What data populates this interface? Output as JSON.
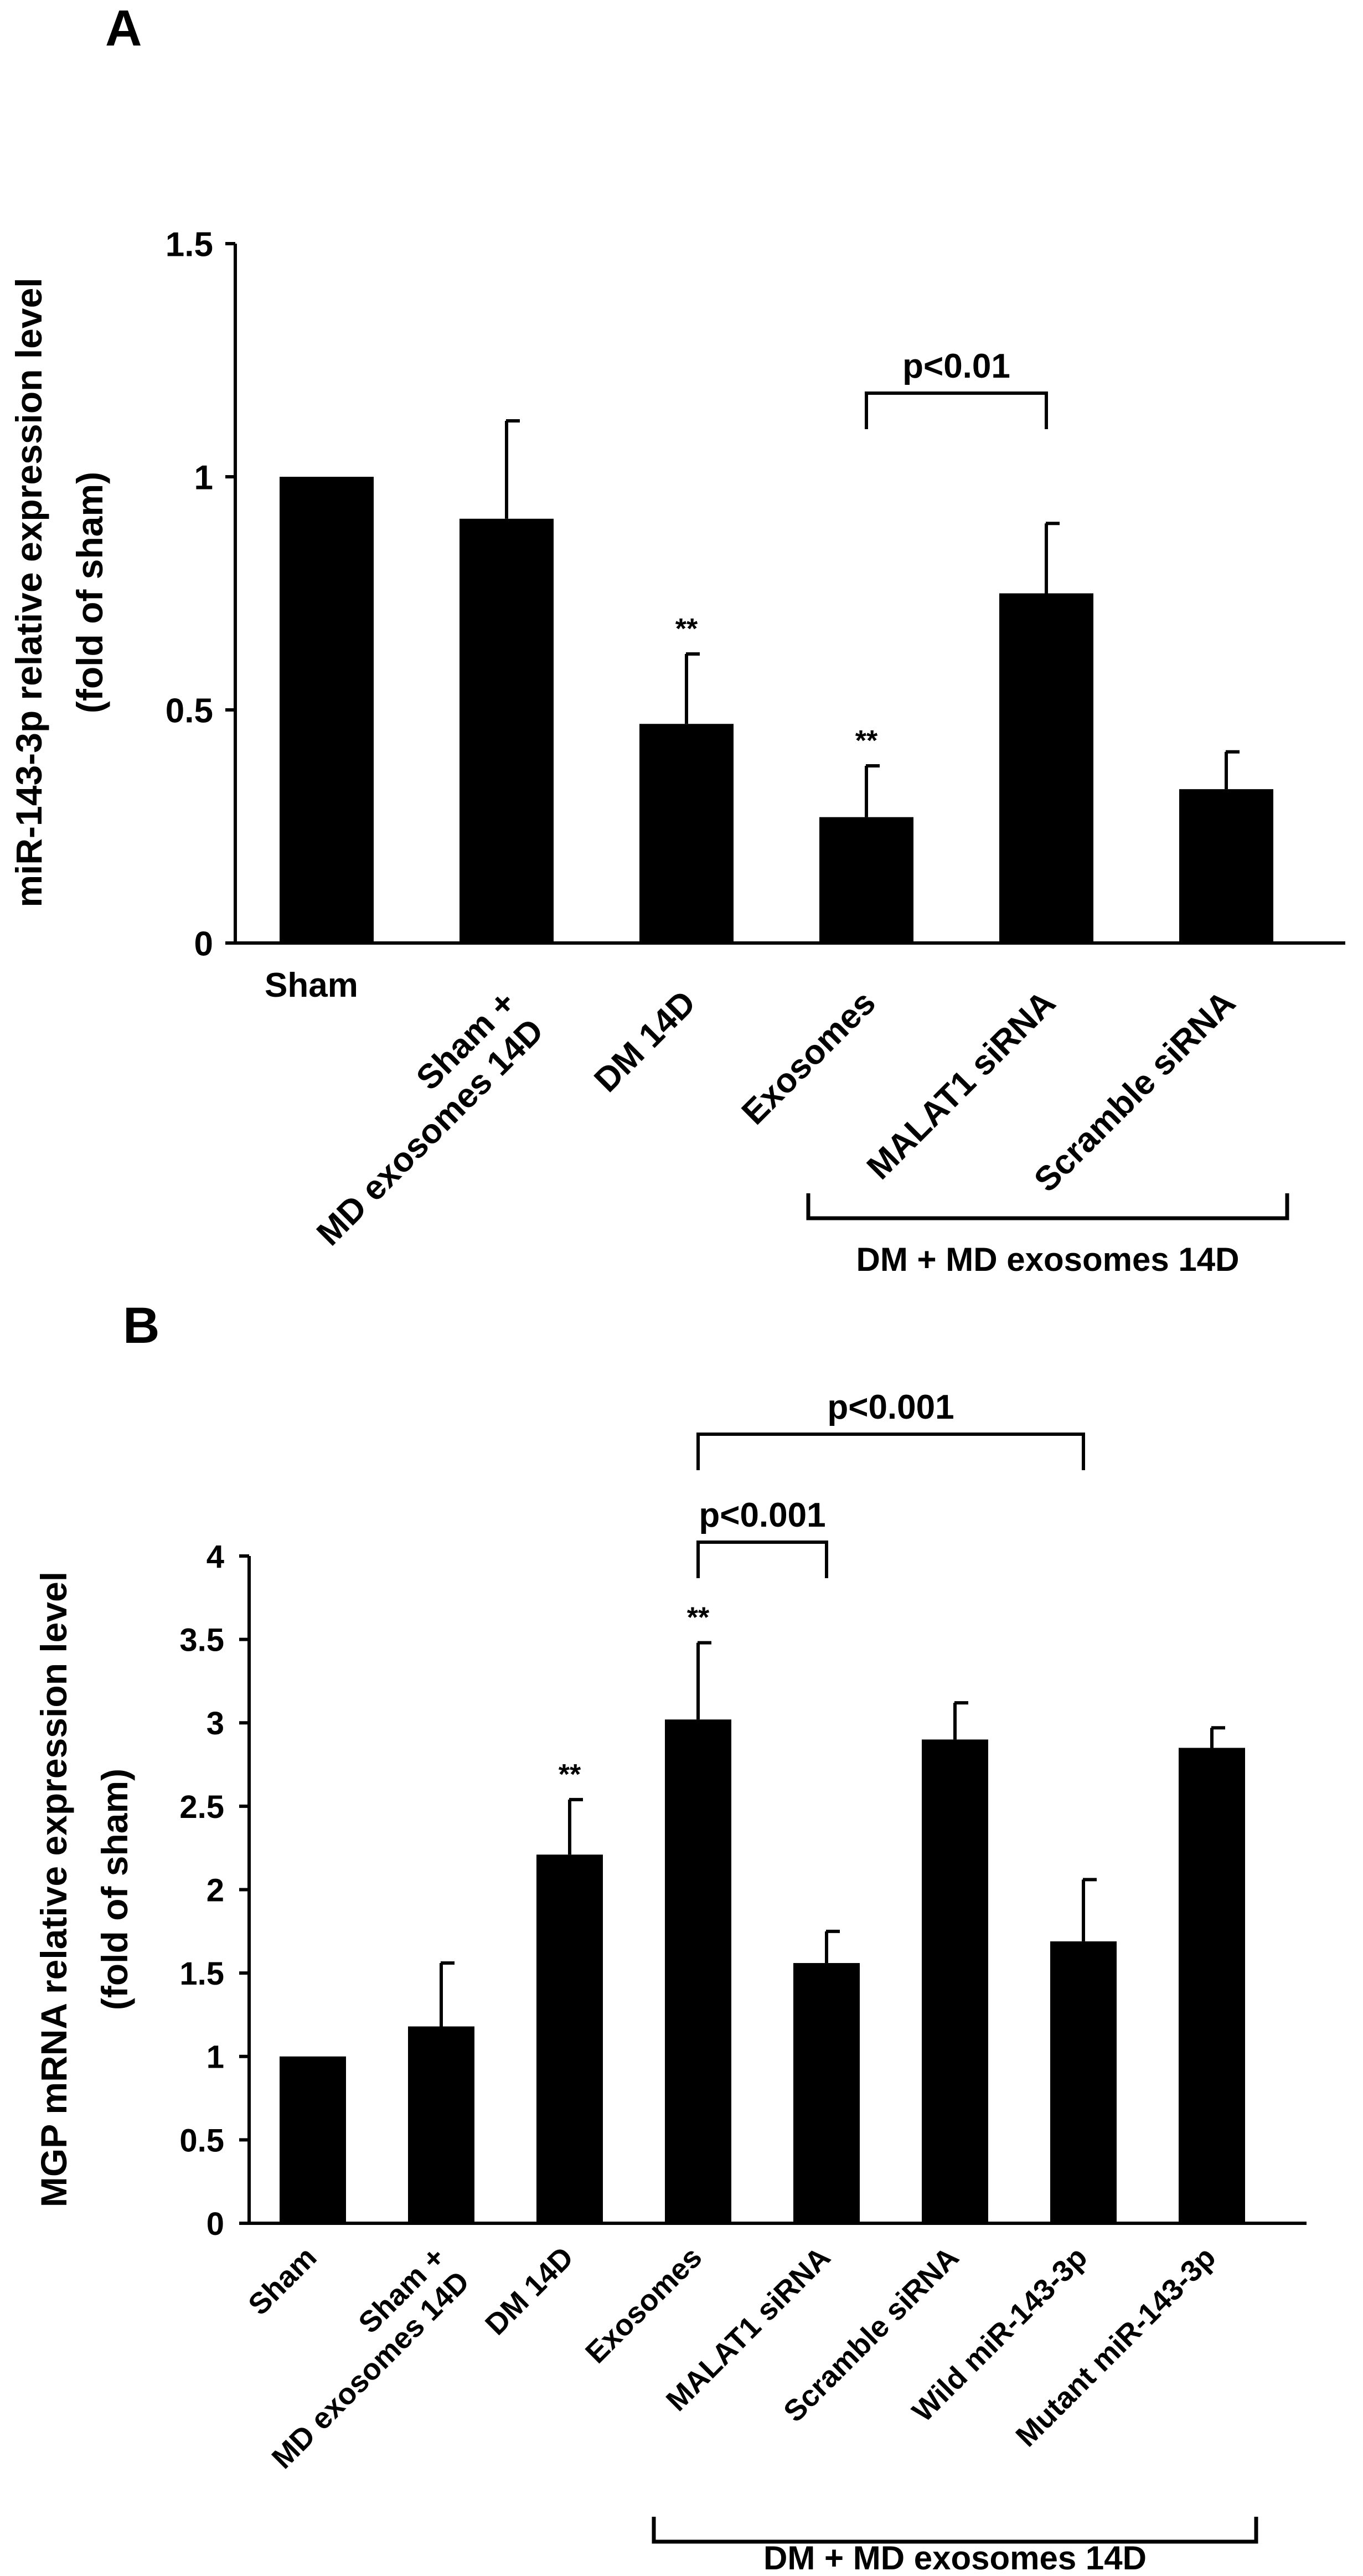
{
  "panels": {
    "a": {
      "label": "A"
    },
    "b": {
      "label": "B"
    }
  },
  "chart_data": [
    {
      "type": "bar",
      "panel": "A",
      "title": "",
      "xlabel": "",
      "ylabel": [
        "miR-143-3p relative expression level",
        "(fold of sham)"
      ],
      "ylim": [
        0,
        1.5
      ],
      "yticks": [
        0,
        0.5,
        1,
        1.5
      ],
      "ytick_labels": [
        "0",
        "0.5",
        "1",
        "1.5"
      ],
      "categories": [
        [
          "Sham"
        ],
        [
          "Sham +",
          "MD exosomes 14D"
        ],
        [
          "DM 14D"
        ],
        [
          "Exosomes"
        ],
        [
          "MALAT1 siRNA"
        ],
        [
          "Scramble siRNA"
        ]
      ],
      "values": [
        1.0,
        0.91,
        0.47,
        0.27,
        0.75,
        0.33
      ],
      "errors": [
        0,
        0.21,
        0.15,
        0.11,
        0.15,
        0.08
      ],
      "significance": [
        "",
        "",
        "**",
        "**",
        "",
        ""
      ],
      "comparisons": [
        {
          "from": 3,
          "to": 4,
          "label": "p<0.01"
        }
      ],
      "group_bracket": {
        "from": 3,
        "to": 5,
        "label": "DM + MD exosomes 14D"
      },
      "bar_color": "#000000"
    },
    {
      "type": "bar",
      "panel": "B",
      "title": "",
      "xlabel": "",
      "ylabel": [
        "MGP mRNA relative expression level",
        "(fold of sham)"
      ],
      "ylim": [
        0,
        4
      ],
      "yticks": [
        0,
        0.5,
        1,
        1.5,
        2,
        2.5,
        3,
        3.5,
        4
      ],
      "ytick_labels": [
        "0",
        "0.5",
        "1",
        "1.5",
        "2",
        "2.5",
        "3",
        "3.5",
        "4"
      ],
      "categories": [
        [
          "Sham"
        ],
        [
          "Sham +",
          "MD exosomes 14D"
        ],
        [
          "DM 14D"
        ],
        [
          "Exosomes"
        ],
        [
          "MALAT1 siRNA"
        ],
        [
          "Scramble siRNA"
        ],
        [
          "Wild miR-143-3p"
        ],
        [
          "Mutant miR-143-3p"
        ]
      ],
      "values": [
        1.0,
        1.18,
        2.21,
        3.02,
        1.56,
        2.9,
        1.69,
        2.85
      ],
      "errors": [
        0,
        0.38,
        0.33,
        0.46,
        0.19,
        0.22,
        0.37,
        0.12
      ],
      "significance": [
        "",
        "",
        "**",
        "**",
        "",
        "",
        "",
        ""
      ],
      "comparisons": [
        {
          "from": 3,
          "to": 4,
          "label": "p<0.001"
        },
        {
          "from": 3,
          "to": 6,
          "label": "p<0.001"
        }
      ],
      "group_bracket": {
        "from": 3,
        "to": 7,
        "label": "DM + MD exosomes 14D"
      },
      "bar_color": "#000000"
    }
  ]
}
